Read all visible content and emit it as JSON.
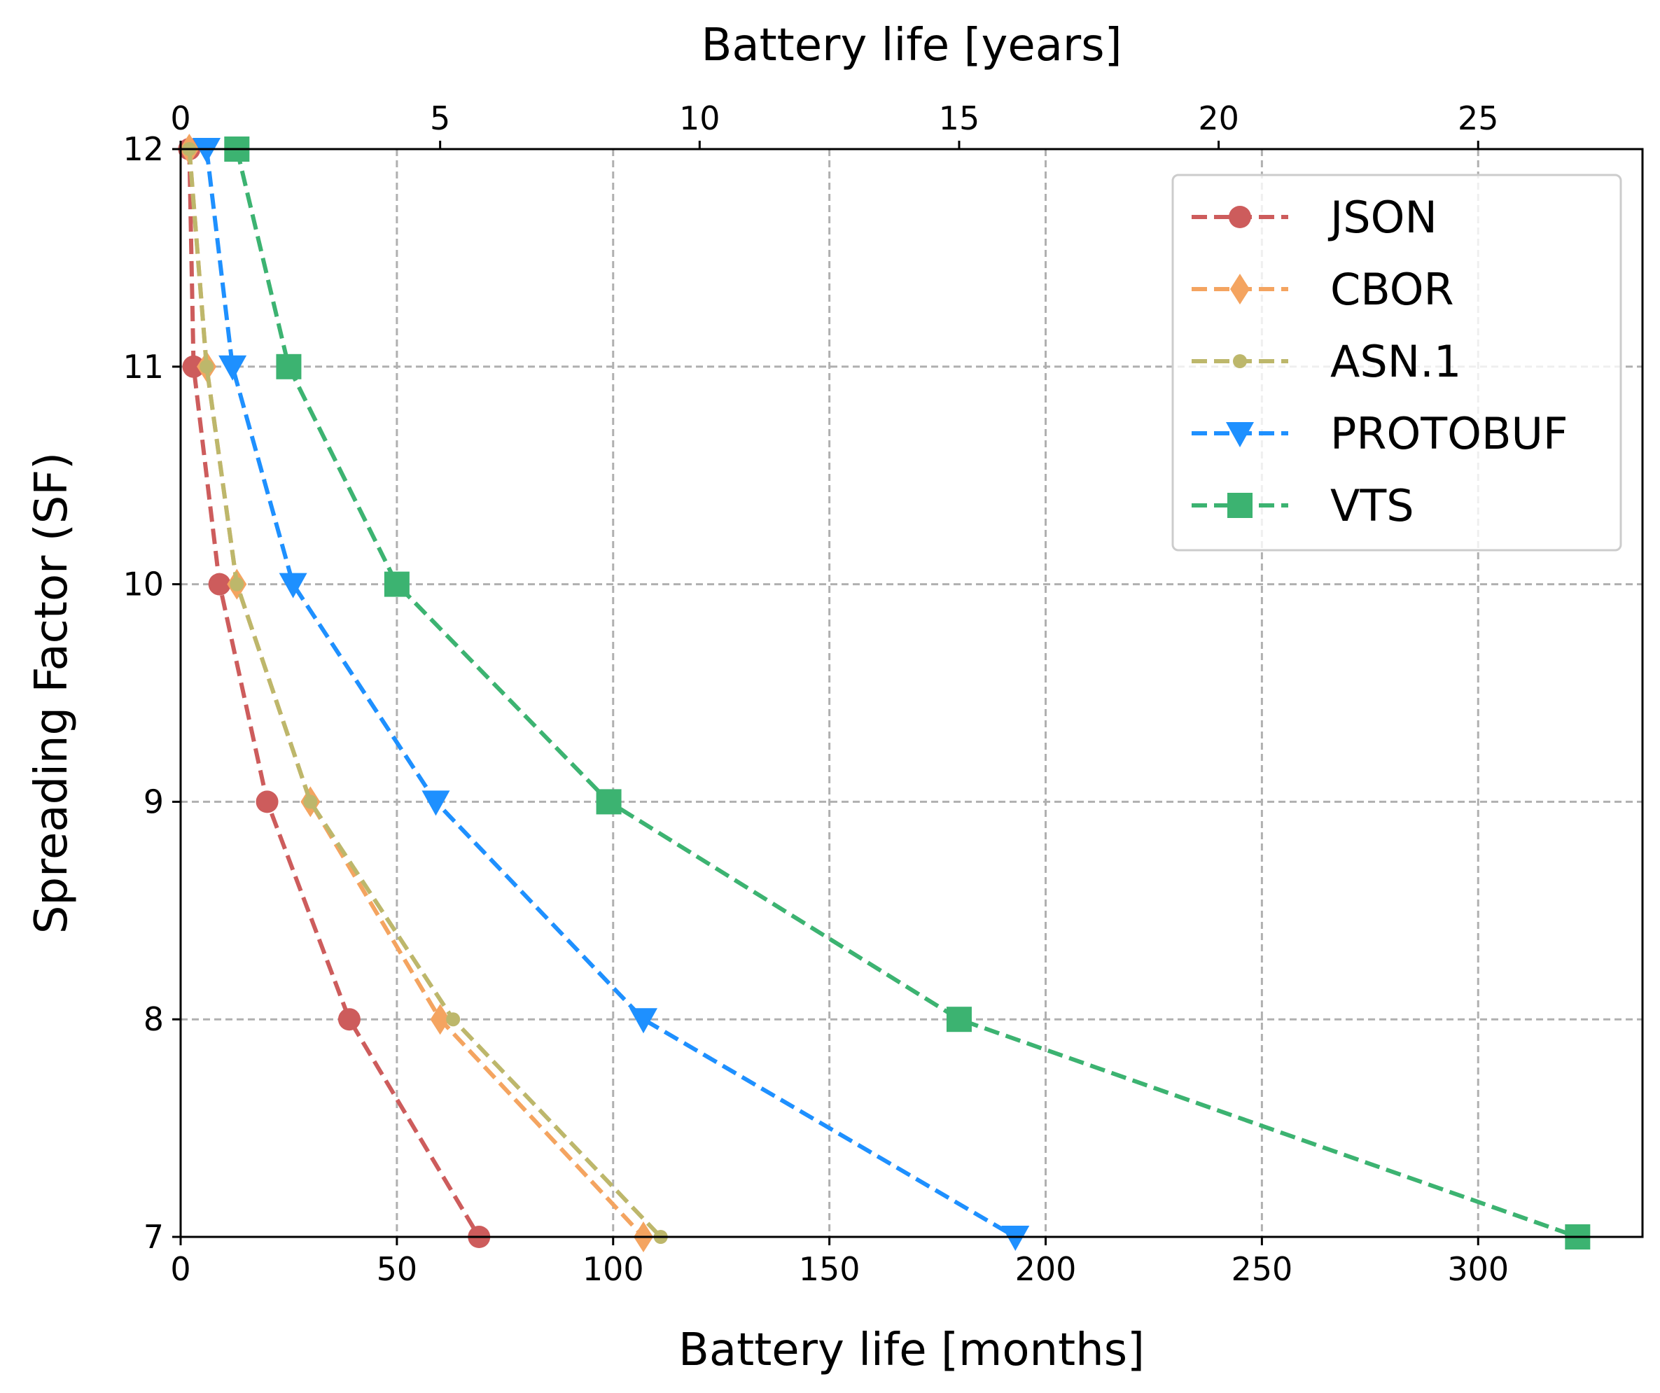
{
  "chart_data": {
    "type": "line",
    "title": "",
    "xlabel": "Battery life [months]",
    "x2label": "Battery life [years]",
    "ylabel": "Spreading Factor (SF)",
    "xlim": [
      0,
      338
    ],
    "x2lim": [
      0,
      28.1667
    ],
    "ylim": [
      7,
      12
    ],
    "xticks": [
      0,
      50,
      100,
      150,
      200,
      250,
      300
    ],
    "x2ticks": [
      0,
      5,
      10,
      15,
      20,
      25
    ],
    "yticks": [
      7,
      8,
      9,
      10,
      11,
      12
    ],
    "grid": true,
    "legend_position": "top-right",
    "series": [
      {
        "name": "JSON",
        "color": "#cd5c5c",
        "marker": "circle",
        "x": [
          2,
          3,
          9,
          20,
          39,
          69
        ],
        "y": [
          12,
          11,
          10,
          9,
          8,
          7
        ]
      },
      {
        "name": "CBOR",
        "color": "#f4a460",
        "marker": "diamond",
        "x": [
          2,
          6,
          13,
          30,
          60,
          107
        ],
        "y": [
          12,
          11,
          10,
          9,
          8,
          7
        ]
      },
      {
        "name": "ASN.1",
        "color": "#bdb76b",
        "marker": "small-circle",
        "x": [
          2,
          6,
          13,
          30,
          63,
          111
        ],
        "y": [
          12,
          11,
          10,
          9,
          8,
          7
        ]
      },
      {
        "name": "PROTOBUF",
        "color": "#1e90ff",
        "marker": "triangle-down",
        "x": [
          6,
          12,
          26,
          59,
          107,
          193
        ],
        "y": [
          12,
          11,
          10,
          9,
          8,
          7
        ]
      },
      {
        "name": "VTS",
        "color": "#3cb371",
        "marker": "square",
        "x": [
          13,
          25,
          50,
          99,
          180,
          323
        ],
        "y": [
          12,
          11,
          10,
          9,
          8,
          7
        ]
      }
    ]
  }
}
